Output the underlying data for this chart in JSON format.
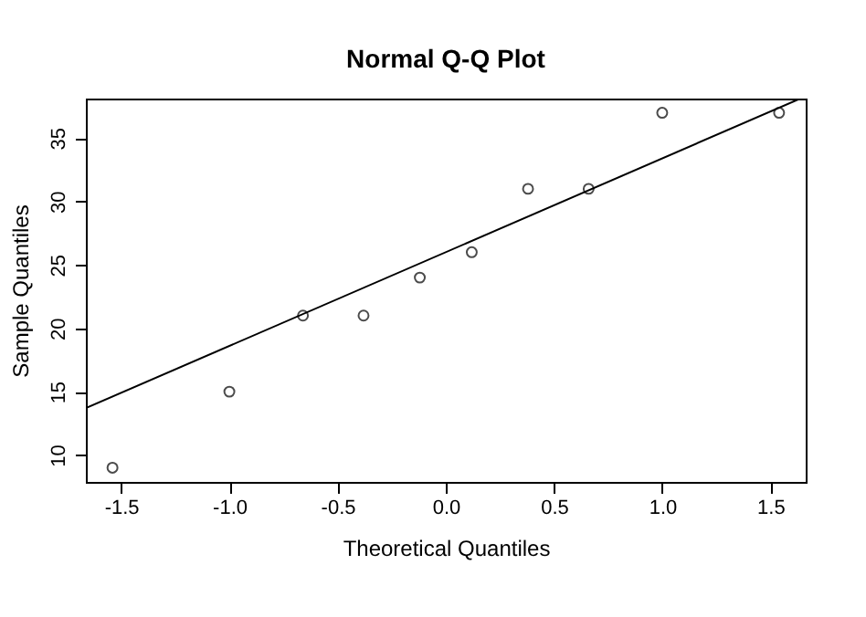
{
  "chart_data": {
    "type": "scatter",
    "title": "Normal Q-Q Plot",
    "xlabel": "Theoretical Quantiles",
    "ylabel": "Sample Quantiles",
    "xlim": [
      -1.663,
      1.663
    ],
    "ylim": [
      7.88,
      38.12
    ],
    "xticks": [
      {
        "value": -1.5,
        "label": "-1.5"
      },
      {
        "value": -1,
        "label": "-1.0"
      },
      {
        "value": -0.5,
        "label": "-0.5"
      },
      {
        "value": 0,
        "label": "0.0"
      },
      {
        "value": 0.5,
        "label": "0.5"
      },
      {
        "value": 1,
        "label": "1.0"
      },
      {
        "value": 1.5,
        "label": "1.5"
      }
    ],
    "yticks": [
      10,
      15,
      20,
      25,
      30,
      35
    ],
    "grid": false,
    "series": [
      {
        "color": "#000000",
        "marker": "circle",
        "x": [
          -1.54,
          -1.0,
          -0.66,
          -0.38,
          -0.12,
          0.12,
          0.38,
          0.66,
          1.0,
          1.54
        ],
        "values": [
          9,
          15,
          21,
          21,
          24,
          26,
          31,
          31,
          37,
          37
        ]
      },
      {
        "type": "line",
        "color": "#000000",
        "x": [
          -1.663,
          1.635
        ],
        "values": [
          13.7,
          38.1
        ]
      }
    ]
  }
}
